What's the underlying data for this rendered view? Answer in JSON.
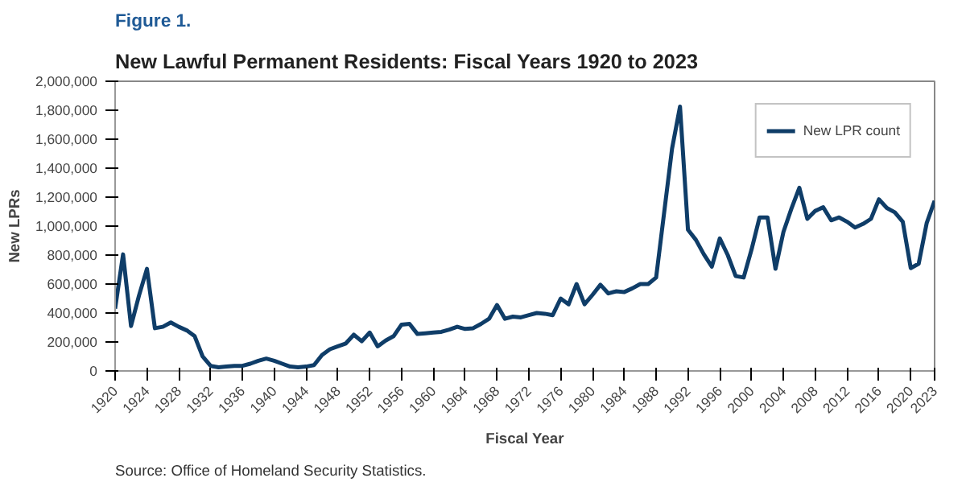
{
  "chart_data": {
    "type": "line",
    "title": "New Lawful Permanent Residents: Fiscal Years 1920 to 2023",
    "annotations": [
      "Figure 1.",
      "Source: Office of Homeland Security Statistics."
    ],
    "xlabel": "Fiscal Year",
    "ylabel": "New LPRs",
    "x": [
      1920,
      1921,
      1922,
      1923,
      1924,
      1925,
      1926,
      1927,
      1928,
      1929,
      1930,
      1931,
      1932,
      1933,
      1934,
      1935,
      1936,
      1937,
      1938,
      1939,
      1940,
      1941,
      1942,
      1943,
      1944,
      1945,
      1946,
      1947,
      1948,
      1949,
      1950,
      1951,
      1952,
      1953,
      1954,
      1955,
      1956,
      1957,
      1958,
      1959,
      1960,
      1961,
      1962,
      1963,
      1964,
      1965,
      1966,
      1967,
      1968,
      1969,
      1970,
      1971,
      1972,
      1973,
      1974,
      1975,
      1976,
      1977,
      1978,
      1979,
      1980,
      1981,
      1982,
      1983,
      1984,
      1985,
      1986,
      1987,
      1988,
      1989,
      1990,
      1991,
      1992,
      1993,
      1994,
      1995,
      1996,
      1997,
      1998,
      1999,
      2000,
      2001,
      2002,
      2003,
      2004,
      2005,
      2006,
      2007,
      2008,
      2009,
      2010,
      2011,
      2012,
      2013,
      2014,
      2015,
      2016,
      2017,
      2018,
      2019,
      2020,
      2021,
      2022,
      2023
    ],
    "series": [
      {
        "name": "New LPR count",
        "color": "#0f3d68",
        "values": [
          430000,
          805000,
          310000,
          520000,
          705000,
          295000,
          305000,
          335000,
          305000,
          280000,
          240000,
          100000,
          35000,
          25000,
          30000,
          35000,
          35000,
          50000,
          70000,
          85000,
          70000,
          50000,
          30000,
          25000,
          30000,
          40000,
          110000,
          150000,
          170000,
          190000,
          250000,
          205000,
          265000,
          170000,
          210000,
          240000,
          320000,
          325000,
          255000,
          260000,
          265000,
          270000,
          285000,
          305000,
          290000,
          295000,
          325000,
          360000,
          455000,
          360000,
          375000,
          370000,
          385000,
          400000,
          395000,
          385000,
          500000,
          460000,
          600000,
          460000,
          525000,
          595000,
          535000,
          550000,
          545000,
          570000,
          600000,
          600000,
          645000,
          1090000,
          1535000,
          1825000,
          975000,
          905000,
          805000,
          720000,
          915000,
          800000,
          655000,
          645000,
          840000,
          1060000,
          1060000,
          705000,
          960000,
          1120000,
          1265000,
          1050000,
          1105000,
          1130000,
          1040000,
          1060000,
          1030000,
          990000,
          1015000,
          1050000,
          1185000,
          1125000,
          1095000,
          1030000,
          710000,
          740000,
          1020000,
          1175000
        ]
      }
    ],
    "xlim": [
      1920,
      2023
    ],
    "xticks": [
      1920,
      1924,
      1928,
      1932,
      1936,
      1940,
      1944,
      1948,
      1952,
      1956,
      1960,
      1964,
      1968,
      1972,
      1976,
      1980,
      1984,
      1988,
      1992,
      1996,
      2000,
      2004,
      2008,
      2012,
      2016,
      2020,
      2023
    ],
    "ylim": [
      0,
      2000000
    ],
    "yticks": [
      {
        "value": 0,
        "label": "0"
      },
      {
        "value": 200000,
        "label": "200,000"
      },
      {
        "value": 400000,
        "label": "400,000"
      },
      {
        "value": 600000,
        "label": "600,000"
      },
      {
        "value": 800000,
        "label": "800,000"
      },
      {
        "value": 1000000,
        "label": "1,000,000"
      },
      {
        "value": 1200000,
        "label": "1,200,000"
      },
      {
        "value": 1400000,
        "label": "1,400,000"
      },
      {
        "value": 1600000,
        "label": "1,600,000"
      },
      {
        "value": 1800000,
        "label": "1,800,000"
      },
      {
        "value": 2000000,
        "label": "2,000,000"
      }
    ],
    "grid": false,
    "legend": "top right",
    "marker": "none",
    "line_style": "solid"
  }
}
